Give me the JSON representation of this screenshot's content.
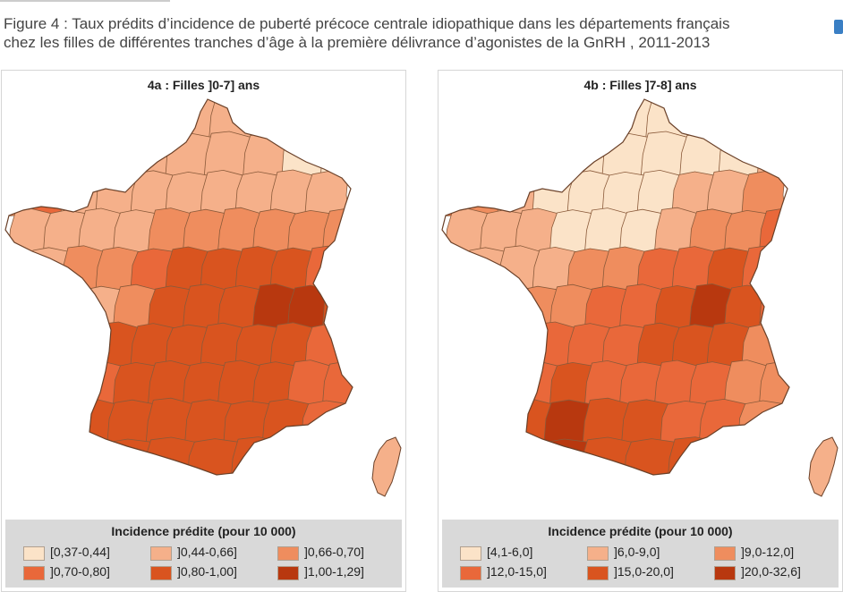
{
  "caption": {
    "line1": "Figure 4 : Taux prédits d’incidence de puberté précoce centrale idiopathique dans les départements français",
    "line2": "chez les filles de différentes tranches d’âge à la première délivrance d’agonistes de la GnRH , 2011-2013"
  },
  "colors": {
    "c1": "#fbe3c8",
    "c2": "#f5b08a",
    "c3": "#ef8d5e",
    "c4": "#e9683a",
    "c5": "#d9541f",
    "c6": "#b8380f",
    "border": "#8a5a3a"
  },
  "maps": [
    {
      "title": "4a : Filles ]0-7] ans",
      "legend_title": "Incidence prédite (pour 10 000)",
      "legend": [
        "[0,37-0,44]",
        "]0,44-0,66]",
        "]0,66-0,70]",
        "]0,70-0,80]",
        "]0,80-1,00]",
        "]1,00-1,29]"
      ]
    },
    {
      "title": "4b : Filles ]7-8] ans",
      "legend_title": "Incidence prédite (pour 10 000)",
      "legend": [
        "[4,1-6,0]",
        "]6,0-9,0]",
        "]9,0-12,0]",
        "]12,0-15,0]",
        "]15,0-20,0]",
        "]20,0-32,6]"
      ]
    }
  ]
}
